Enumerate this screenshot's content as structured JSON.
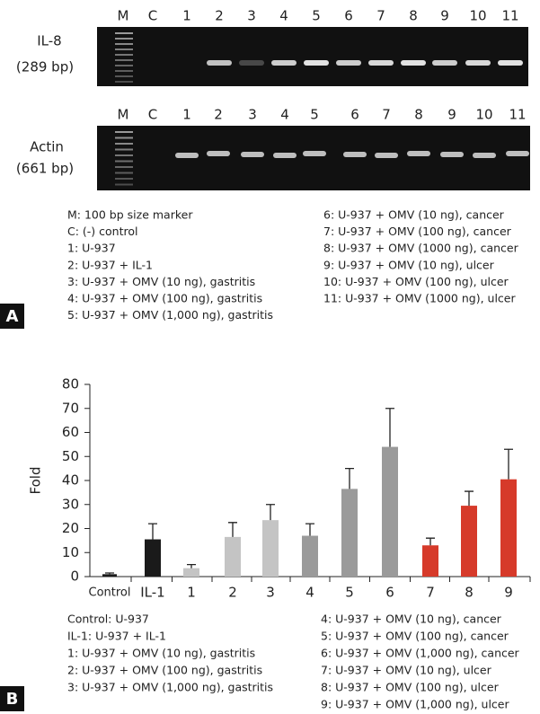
{
  "panel_a": {
    "label": "A",
    "lanes_top": [
      "M",
      "C",
      "1",
      "2",
      "3",
      "4",
      "5",
      "6",
      "7",
      "8",
      "9",
      "10",
      "11"
    ],
    "lanes_bottom": [
      "M",
      "C",
      "1",
      "2",
      "3",
      "4",
      "5",
      "6",
      "7",
      "8",
      "9",
      "10",
      "11"
    ],
    "gel_top_label": [
      "IL-8",
      "(289 bp)"
    ],
    "gel_bottom_label": [
      "Actin",
      "(661 bp)"
    ],
    "legend_left": [
      "M: 100 bp size marker",
      "C: (-) control",
      "1: U-937",
      "2: U-937 + IL-1",
      "3: U-937 + OMV (10 ng), gastritis",
      "4: U-937 + OMV (100 ng), gastritis",
      "5: U-937 + OMV (1,000 ng), gastritis"
    ],
    "legend_right": [
      "6: U-937 + OMV (10 ng), cancer",
      "7: U-937 + OMV (100 ng), cancer",
      "8: U-937 + OMV (1000 ng), cancer",
      "9: U-937 + OMV (10 ng), ulcer",
      "10: U-937 + OMV (100 ng), ulcer",
      "11: U-937 + OMV (1000 ng), ulcer"
    ]
  },
  "chart_data": {
    "type": "bar",
    "label": "B",
    "y_label": "Fold",
    "categories": [
      "Control",
      "IL-1",
      "1",
      "2",
      "3",
      "4",
      "5",
      "6",
      "7",
      "8",
      "9"
    ],
    "values": [
      1,
      15.5,
      3.5,
      16.5,
      23.5,
      17,
      36.5,
      54,
      13,
      29.5,
      40.5
    ],
    "errors": [
      0.5,
      6.5,
      1.5,
      6,
      6.5,
      5,
      8.5,
      16,
      3,
      6,
      12.5
    ],
    "colors": [
      "#1a1a1a",
      "#1a1a1a",
      "#c4c4c4",
      "#c4c4c4",
      "#c4c4c4",
      "#9a9a9a",
      "#9a9a9a",
      "#9a9a9a",
      "#d63a2a",
      "#d63a2a",
      "#d63a2a"
    ],
    "ylim": [
      0,
      80
    ],
    "yticks": [
      0,
      10,
      20,
      30,
      40,
      50,
      60,
      70,
      80
    ],
    "legend_left": [
      "Control: U-937",
      "IL-1: U-937 + IL-1",
      "1: U-937 + OMV (10 ng), gastritis",
      "2: U-937 + OMV (100 ng), gastritis",
      "3: U-937 + OMV (1,000 ng), gastritis"
    ],
    "legend_right": [
      "4: U-937 + OMV (10 ng), cancer",
      "5: U-937 + OMV (100 ng), cancer",
      "6: U-937 + OMV (1,000 ng), cancer",
      "7: U-937 + OMV (10 ng), ulcer",
      "8: U-937 + OMV (100 ng), ulcer",
      "9: U-937 + OMV (1,000 ng), ulcer"
    ]
  }
}
